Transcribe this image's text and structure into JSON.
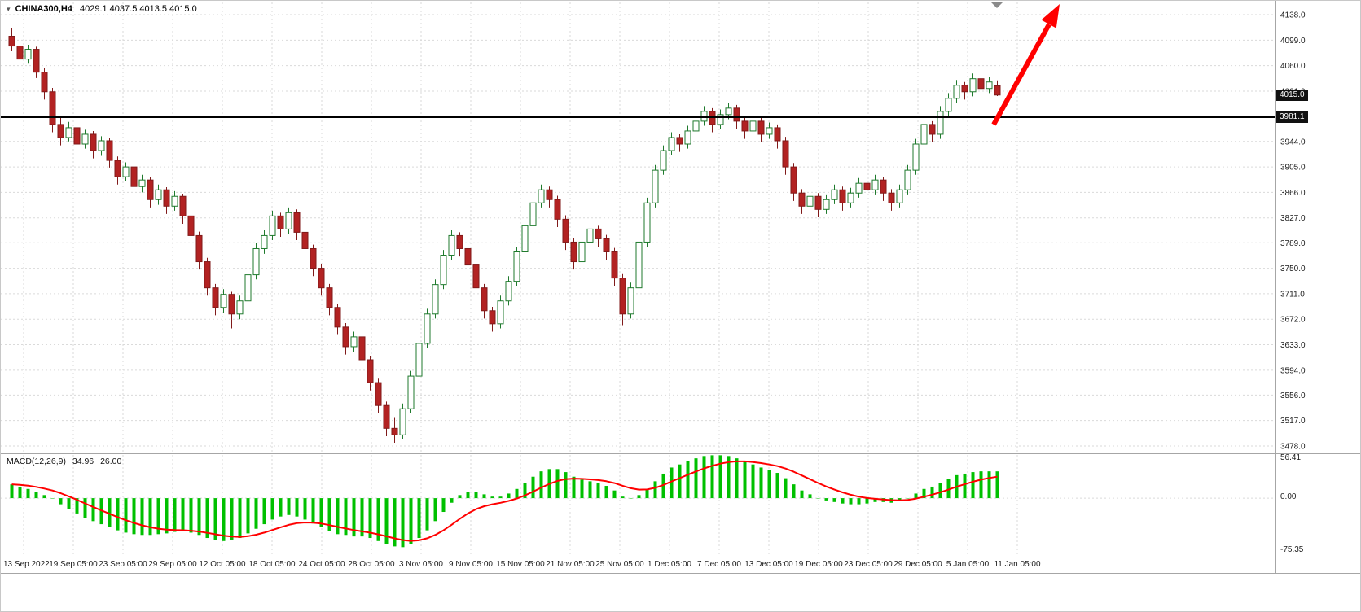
{
  "chart": {
    "symbol_label": "CHINA300,H4",
    "ohlc_label": "4029.1 4037.5 4013.5 4015.0",
    "bid_badge": "4015.0",
    "hline_badge": "3981.1",
    "bid_price": 4015.0,
    "hline_price": 3981.1
  },
  "macd": {
    "label": "MACD(12,26,9)",
    "main_value": "34.96",
    "signal_value": "26.00",
    "axis_labels": [
      "56.41",
      "0.00",
      "-75.35"
    ]
  },
  "colors": {
    "bear_candle": "#b22222",
    "bear_border": "#801a1a",
    "bull_candle": "#ffffff",
    "bull_border": "#1f7a2d",
    "macd_histogram": "#00c000",
    "macd_signal": "#ff0000",
    "trend_arrow": "#ff0000",
    "hline": "#000000",
    "grid": "#dadada"
  },
  "chart_data": {
    "type": "candlestick",
    "symbol": "CHINA300",
    "timeframe": "H4",
    "title": "CHINA300,H4 4029.1 4037.5 4013.5 4015.0",
    "last_ohlc": {
      "open": 4029.1,
      "high": 4037.5,
      "low": 4013.5,
      "close": 4015.0
    },
    "price_axis_ticks": [
      4138.0,
      4099.0,
      4060.0,
      4021.0,
      3982.0,
      3944.0,
      3905.0,
      3866.0,
      3827.0,
      3789.0,
      3750.0,
      3711.0,
      3672.0,
      3633.0,
      3594.0,
      3556.0,
      3517.0,
      3478.0
    ],
    "time_labels": [
      "13 Sep 2022",
      "19 Sep 05:00",
      "23 Sep 05:00",
      "29 Sep 05:00",
      "12 Oct 05:00",
      "18 Oct 05:00",
      "24 Oct 05:00",
      "28 Oct 05:00",
      "3 Nov 05:00",
      "9 Nov 05:00",
      "15 Nov 05:00",
      "21 Nov 05:00",
      "25 Nov 05:00",
      "1 Dec 05:00",
      "7 Dec 05:00",
      "13 Dec 05:00",
      "19 Dec 05:00",
      "23 Dec 05:00",
      "29 Dec 05:00",
      "5 Jan 05:00",
      "11 Jan 05:00"
    ],
    "overlays": {
      "horizontal_line_price": 3981.1,
      "bid_price": 4015.0,
      "trend_arrow": "up-right-red"
    },
    "candles_ohlc": [
      [
        4105,
        4118,
        4082,
        4090
      ],
      [
        4090,
        4096,
        4058,
        4070
      ],
      [
        4070,
        4092,
        4063,
        4085
      ],
      [
        4085,
        4089,
        4041,
        4050
      ],
      [
        4050,
        4056,
        4008,
        4020
      ],
      [
        4020,
        4026,
        3958,
        3970
      ],
      [
        3970,
        3981,
        3938,
        3950
      ],
      [
        3950,
        3974,
        3944,
        3965
      ],
      [
        3965,
        3969,
        3928,
        3940
      ],
      [
        3940,
        3962,
        3933,
        3955
      ],
      [
        3955,
        3960,
        3918,
        3930
      ],
      [
        3930,
        3952,
        3922,
        3945
      ],
      [
        3945,
        3949,
        3904,
        3915
      ],
      [
        3915,
        3921,
        3878,
        3890
      ],
      [
        3890,
        3912,
        3883,
        3905
      ],
      [
        3905,
        3909,
        3863,
        3875
      ],
      [
        3875,
        3893,
        3866,
        3885
      ],
      [
        3885,
        3889,
        3843,
        3855
      ],
      [
        3855,
        3878,
        3847,
        3870
      ],
      [
        3870,
        3874,
        3833,
        3845
      ],
      [
        3845,
        3868,
        3838,
        3860
      ],
      [
        3860,
        3864,
        3818,
        3830
      ],
      [
        3830,
        3836,
        3788,
        3800
      ],
      [
        3800,
        3806,
        3748,
        3760
      ],
      [
        3760,
        3766,
        3708,
        3720
      ],
      [
        3720,
        3726,
        3678,
        3690
      ],
      [
        3690,
        3718,
        3682,
        3710
      ],
      [
        3710,
        3714,
        3658,
        3680
      ],
      [
        3680,
        3708,
        3672,
        3700
      ],
      [
        3700,
        3748,
        3693,
        3740
      ],
      [
        3740,
        3788,
        3733,
        3780
      ],
      [
        3780,
        3808,
        3772,
        3800
      ],
      [
        3800,
        3838,
        3793,
        3830
      ],
      [
        3830,
        3835,
        3798,
        3810
      ],
      [
        3810,
        3843,
        3803,
        3835
      ],
      [
        3835,
        3840,
        3793,
        3805
      ],
      [
        3805,
        3811,
        3768,
        3780
      ],
      [
        3780,
        3786,
        3738,
        3750
      ],
      [
        3750,
        3756,
        3708,
        3720
      ],
      [
        3720,
        3726,
        3678,
        3690
      ],
      [
        3690,
        3696,
        3648,
        3660
      ],
      [
        3660,
        3666,
        3618,
        3630
      ],
      [
        3630,
        3653,
        3622,
        3645
      ],
      [
        3645,
        3650,
        3598,
        3610
      ],
      [
        3610,
        3616,
        3563,
        3575
      ],
      [
        3575,
        3581,
        3528,
        3540
      ],
      [
        3540,
        3546,
        3493,
        3505
      ],
      [
        3505,
        3521,
        3483,
        3495
      ],
      [
        3495,
        3543,
        3488,
        3535
      ],
      [
        3535,
        3593,
        3528,
        3585
      ],
      [
        3585,
        3643,
        3578,
        3635
      ],
      [
        3635,
        3688,
        3628,
        3680
      ],
      [
        3680,
        3733,
        3673,
        3725
      ],
      [
        3725,
        3778,
        3718,
        3770
      ],
      [
        3770,
        3808,
        3763,
        3800
      ],
      [
        3800,
        3805,
        3768,
        3780
      ],
      [
        3780,
        3785,
        3743,
        3755
      ],
      [
        3755,
        3761,
        3708,
        3720
      ],
      [
        3720,
        3726,
        3673,
        3685
      ],
      [
        3685,
        3691,
        3653,
        3665
      ],
      [
        3665,
        3708,
        3658,
        3700
      ],
      [
        3700,
        3738,
        3693,
        3730
      ],
      [
        3730,
        3783,
        3723,
        3775
      ],
      [
        3775,
        3823,
        3768,
        3815
      ],
      [
        3815,
        3858,
        3808,
        3850
      ],
      [
        3850,
        3878,
        3843,
        3870
      ],
      [
        3870,
        3875,
        3843,
        3855
      ],
      [
        3855,
        3861,
        3813,
        3825
      ],
      [
        3825,
        3831,
        3778,
        3790
      ],
      [
        3790,
        3796,
        3748,
        3760
      ],
      [
        3760,
        3798,
        3753,
        3790
      ],
      [
        3790,
        3818,
        3783,
        3810
      ],
      [
        3810,
        3815,
        3783,
        3795
      ],
      [
        3795,
        3801,
        3763,
        3775
      ],
      [
        3775,
        3781,
        3723,
        3735
      ],
      [
        3735,
        3741,
        3663,
        3680
      ],
      [
        3680,
        3728,
        3673,
        3720
      ],
      [
        3720,
        3798,
        3713,
        3790
      ],
      [
        3790,
        3858,
        3783,
        3850
      ],
      [
        3850,
        3908,
        3843,
        3900
      ],
      [
        3900,
        3938,
        3893,
        3930
      ],
      [
        3930,
        3958,
        3923,
        3950
      ],
      [
        3950,
        3955,
        3928,
        3940
      ],
      [
        3940,
        3968,
        3933,
        3960
      ],
      [
        3960,
        3983,
        3953,
        3975
      ],
      [
        3975,
        3998,
        3968,
        3990
      ],
      [
        3990,
        3995,
        3958,
        3970
      ],
      [
        3970,
        3993,
        3963,
        3985
      ],
      [
        3985,
        4003,
        3978,
        3995
      ],
      [
        3995,
        4000,
        3963,
        3975
      ],
      [
        3975,
        3981,
        3948,
        3960
      ],
      [
        3960,
        3983,
        3953,
        3975
      ],
      [
        3975,
        3980,
        3943,
        3955
      ],
      [
        3955,
        3973,
        3948,
        3965
      ],
      [
        3965,
        3970,
        3933,
        3945
      ],
      [
        3945,
        3951,
        3893,
        3905
      ],
      [
        3905,
        3911,
        3853,
        3865
      ],
      [
        3865,
        3871,
        3833,
        3845
      ],
      [
        3845,
        3868,
        3838,
        3860
      ],
      [
        3860,
        3865,
        3828,
        3840
      ],
      [
        3840,
        3863,
        3833,
        3855
      ],
      [
        3855,
        3878,
        3848,
        3870
      ],
      [
        3870,
        3875,
        3838,
        3850
      ],
      [
        3850,
        3873,
        3843,
        3865
      ],
      [
        3865,
        3888,
        3858,
        3880
      ],
      [
        3880,
        3885,
        3858,
        3870
      ],
      [
        3870,
        3893,
        3863,
        3885
      ],
      [
        3885,
        3890,
        3853,
        3865
      ],
      [
        3865,
        3871,
        3838,
        3850
      ],
      [
        3850,
        3878,
        3843,
        3870
      ],
      [
        3870,
        3908,
        3863,
        3900
      ],
      [
        3900,
        3948,
        3893,
        3940
      ],
      [
        3940,
        3978,
        3933,
        3970
      ],
      [
        3970,
        3975,
        3943,
        3955
      ],
      [
        3955,
        3998,
        3948,
        3990
      ],
      [
        3990,
        4018,
        3983,
        4010
      ],
      [
        4010,
        4038,
        4003,
        4030
      ],
      [
        4030,
        4035,
        4008,
        4020
      ],
      [
        4020,
        4048,
        4013,
        4040
      ],
      [
        4040,
        4045,
        4018,
        4025
      ],
      [
        4025,
        4043,
        4018,
        4035
      ],
      [
        4029.1,
        4037.5,
        4013.5,
        4015.0
      ]
    ],
    "indicator": {
      "name": "MACD",
      "params": "12,26,9",
      "histogram_last": 34.96,
      "signal_last": 26.0,
      "scale_max": 56.41,
      "scale_min": -75.35,
      "signal_period": 9,
      "histogram": [
        18,
        15,
        12,
        8,
        4,
        0,
        -8,
        -14,
        -20,
        -26,
        -30,
        -34,
        -38,
        -42,
        -45,
        -47,
        -48,
        -48,
        -47,
        -46,
        -44,
        -43,
        -45,
        -48,
        -52,
        -55,
        -56,
        -55,
        -52,
        -46,
        -40,
        -34,
        -28,
        -24,
        -22,
        -24,
        -28,
        -33,
        -38,
        -43,
        -47,
        -48,
        -50,
        -50,
        -52,
        -56,
        -60,
        -63,
        -64,
        -60,
        -52,
        -42,
        -30,
        -18,
        -6,
        4,
        8,
        8,
        5,
        2,
        2,
        6,
        12,
        20,
        28,
        35,
        38,
        38,
        34,
        28,
        24,
        22,
        20,
        16,
        10,
        2,
        0,
        4,
        12,
        22,
        32,
        40,
        44,
        48,
        52,
        55,
        56,
        56,
        55,
        52,
        48,
        44,
        40,
        37,
        33,
        26,
        18,
        10,
        5,
        0,
        -3,
        -5,
        -7,
        -8,
        -8,
        -7,
        -5,
        -5,
        -6,
        -4,
        0,
        6,
        12,
        15,
        20,
        25,
        30,
        32,
        34,
        35,
        35,
        34.96
      ]
    }
  }
}
